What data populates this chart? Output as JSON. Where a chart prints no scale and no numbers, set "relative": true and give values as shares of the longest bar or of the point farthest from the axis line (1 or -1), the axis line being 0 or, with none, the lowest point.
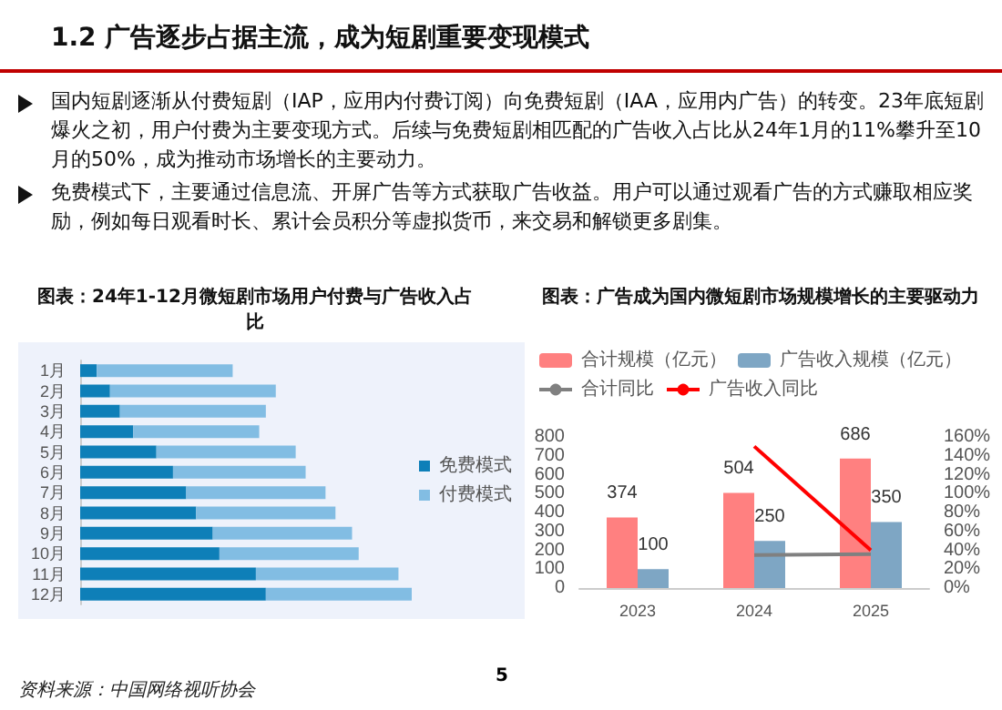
{
  "chart_data": [
    {
      "type": "other",
      "title": "1.2 广告逐步占据主流，成为短剧重要变现模式",
      "annotations": [
        "国内短剧逐渐从付费短剧（IAP，应用内付费订阅）向免费短剧（IAA，应用内广告）的转变。23年底短剧爆火之初，用户付费为主要变现方式。后续与免费短剧相匹配的广告收入占比从24年1月的11%攀升至10月的50%，成为推动市场增长的主要动力。",
        "免费模式下，主要通过信息流、开屏广告等方式获取广告收益。用户可以通过观看广告的方式赚取相应奖励，例如每日观看时长、累计会员积分等虚拟货币，来交易和解锁更多剧集。",
        "资料来源：中国网络视听协会",
        "5"
      ]
    },
    {
      "type": "bar",
      "orientation": "horizontal",
      "stacked": true,
      "relative": true,
      "title": "图表：24年1-12月微短剧市场用户付费与广告收入占比",
      "legend": "right",
      "categories": [
        "1月",
        "2月",
        "3月",
        "4月",
        "5月",
        "6月",
        "7月",
        "8月",
        "9月",
        "10月",
        "11月",
        "12月"
      ],
      "series": [
        {
          "name": "免费模式",
          "color": "#0e7fb8",
          "values": [
            0.05,
            0.09,
            0.12,
            0.16,
            0.23,
            0.28,
            0.32,
            0.35,
            0.4,
            0.42,
            0.53,
            0.56
          ]
        },
        {
          "name": "付费模式",
          "color": "#82bde3",
          "values": [
            0.41,
            0.5,
            0.44,
            0.38,
            0.42,
            0.4,
            0.42,
            0.42,
            0.42,
            0.42,
            0.43,
            0.44
          ]
        }
      ]
    },
    {
      "type": "bar",
      "title": "图表：广告成为国内微短剧市场规模增长的主要驱动力",
      "legend": "top",
      "marker": "none",
      "categories": [
        "2023",
        "2024",
        "2025"
      ],
      "ylim": [
        0,
        800
      ],
      "yticks": [
        0,
        100,
        200,
        300,
        400,
        500,
        600,
        700,
        800
      ],
      "y2lim": [
        0,
        160
      ],
      "y2ticks": [
        {
          "value": 0,
          "label": "0%"
        },
        {
          "value": 20,
          "label": "20%"
        },
        {
          "value": 40,
          "label": "40%"
        },
        {
          "value": 60,
          "label": "60%"
        },
        {
          "value": 80,
          "label": "80%"
        },
        {
          "value": 100,
          "label": "100%"
        },
        {
          "value": 120,
          "label": "120%"
        },
        {
          "value": 140,
          "label": "140%"
        },
        {
          "value": 160,
          "label": "160%"
        }
      ],
      "series": [
        {
          "name": "合计规模（亿元）",
          "color": "#ff8080",
          "values": [
            374,
            504,
            686
          ],
          "value_labels": [
            "374",
            "504",
            "686"
          ]
        },
        {
          "name": "广告收入规模（亿元）",
          "color": "#7ea6c4",
          "values": [
            100,
            250,
            350
          ],
          "value_labels": [
            "100",
            "250",
            "350"
          ]
        },
        {
          "name": "合计同比",
          "type": "line",
          "axis": "y2",
          "color": "#808080",
          "values": [
            null,
            35,
            36
          ]
        },
        {
          "name": "广告收入同比",
          "type": "line",
          "axis": "y2",
          "color": "#ff0000",
          "values": [
            null,
            150,
            40
          ]
        }
      ]
    }
  ]
}
